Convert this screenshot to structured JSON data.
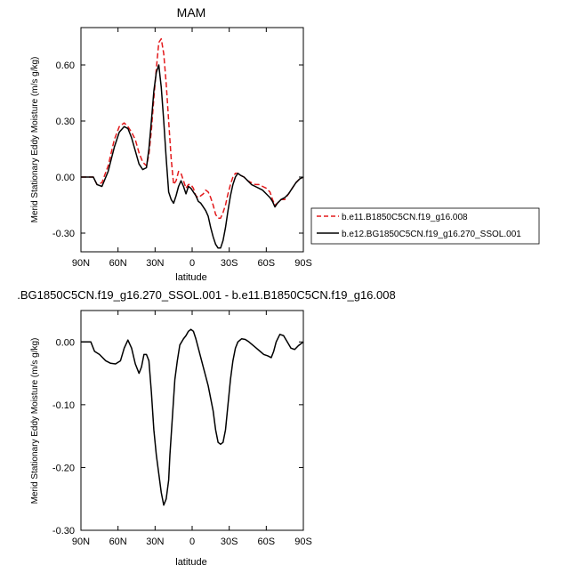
{
  "chart_data": [
    {
      "type": "line",
      "title": "MAM",
      "xlabel": "latitude",
      "ylabel": "Merid Stationary Eddy Moisture (m/s g/kg)",
      "xlim": [
        90,
        -90
      ],
      "ylim": [
        -0.4,
        0.8
      ],
      "x_ticks": [
        90,
        60,
        30,
        0,
        -30,
        -60,
        -90
      ],
      "x_tick_labels": [
        "90N",
        "60N",
        "30N",
        "0",
        "30S",
        "60S",
        "90S"
      ],
      "y_ticks": [
        -0.3,
        0.0,
        0.3,
        0.6
      ],
      "y_tick_labels": [
        "-0.30",
        "0.00",
        "0.30",
        "0.60"
      ],
      "legend_position": "right",
      "series": [
        {
          "name": "b.e11.B1850C5CN.f19_g16.008",
          "color": "#e31a1c",
          "dash": "dashed",
          "x": [
            90,
            85,
            80,
            77,
            73,
            68,
            63,
            59,
            55,
            52,
            49,
            46,
            43,
            40,
            37,
            35,
            33,
            31,
            29,
            27,
            25,
            23,
            21,
            19,
            17,
            15,
            13,
            11,
            9,
            7,
            5,
            3,
            1,
            -1,
            -3,
            -5,
            -7,
            -9,
            -11,
            -13,
            -15,
            -17,
            -19,
            -21,
            -23,
            -25,
            -27,
            -29,
            -31,
            -33,
            -35,
            -37,
            -39,
            -42,
            -45,
            -48,
            -51,
            -54,
            -57,
            -60,
            -63,
            -65,
            -67,
            -69,
            -72,
            -75,
            -78,
            -81,
            -84,
            -87,
            -90
          ],
          "y": [
            0.0,
            0.0,
            0.0,
            -0.04,
            -0.03,
            0.06,
            0.2,
            0.27,
            0.29,
            0.27,
            0.24,
            0.2,
            0.13,
            0.08,
            0.06,
            0.12,
            0.25,
            0.42,
            0.58,
            0.72,
            0.74,
            0.66,
            0.5,
            0.3,
            0.1,
            -0.04,
            -0.02,
            0.03,
            0.02,
            -0.02,
            -0.06,
            -0.04,
            -0.04,
            -0.06,
            -0.1,
            -0.11,
            -0.1,
            -0.09,
            -0.07,
            -0.08,
            -0.11,
            -0.15,
            -0.2,
            -0.22,
            -0.22,
            -0.19,
            -0.15,
            -0.09,
            -0.04,
            0.0,
            0.02,
            0.02,
            0.01,
            0.0,
            -0.02,
            -0.03,
            -0.04,
            -0.04,
            -0.05,
            -0.06,
            -0.08,
            -0.12,
            -0.15,
            -0.14,
            -0.12,
            -0.12,
            -0.09,
            -0.06,
            -0.03,
            -0.01,
            0.0
          ]
        },
        {
          "name": "b.e12.BG1850C5CN.f19_g16.270_SSOL.001",
          "color": "#000000",
          "dash": "solid",
          "x": [
            90,
            85,
            80,
            77,
            73,
            68,
            63,
            59,
            55,
            52,
            49,
            46,
            43,
            40,
            37,
            35,
            33,
            31,
            29,
            27,
            25,
            23,
            21,
            19,
            17,
            15,
            13,
            11,
            9,
            7,
            5,
            3,
            1,
            -1,
            -3,
            -5,
            -7,
            -9,
            -11,
            -13,
            -15,
            -17,
            -19,
            -21,
            -23,
            -25,
            -27,
            -29,
            -31,
            -33,
            -35,
            -37,
            -39,
            -42,
            -45,
            -48,
            -51,
            -54,
            -57,
            -60,
            -63,
            -65,
            -67,
            -69,
            -72,
            -75,
            -78,
            -81,
            -84,
            -87,
            -90
          ],
          "y": [
            0.0,
            0.0,
            0.0,
            -0.04,
            -0.05,
            0.03,
            0.16,
            0.24,
            0.27,
            0.26,
            0.21,
            0.14,
            0.07,
            0.04,
            0.05,
            0.15,
            0.3,
            0.46,
            0.56,
            0.6,
            0.48,
            0.3,
            0.1,
            -0.08,
            -0.12,
            -0.14,
            -0.1,
            -0.05,
            -0.02,
            -0.05,
            -0.09,
            -0.05,
            -0.06,
            -0.08,
            -0.1,
            -0.13,
            -0.14,
            -0.16,
            -0.18,
            -0.21,
            -0.27,
            -0.32,
            -0.36,
            -0.38,
            -0.38,
            -0.34,
            -0.27,
            -0.18,
            -0.1,
            -0.04,
            0.0,
            0.02,
            0.01,
            0.0,
            -0.02,
            -0.04,
            -0.05,
            -0.06,
            -0.07,
            -0.09,
            -0.11,
            -0.13,
            -0.16,
            -0.14,
            -0.12,
            -0.11,
            -0.09,
            -0.06,
            -0.03,
            -0.01,
            0.0
          ]
        }
      ]
    },
    {
      "type": "line",
      "title": ".BG1850C5CN.f19_g16.270_SSOL.001 - b.e11.B1850C5CN.f19_g16.008",
      "xlabel": "latitude",
      "ylabel": "Merid Stationary Eddy Moisture (m/s g/kg)",
      "xlim": [
        90,
        -90
      ],
      "ylim": [
        -0.3,
        0.05
      ],
      "x_ticks": [
        90,
        60,
        30,
        0,
        -30,
        -60,
        -90
      ],
      "x_tick_labels": [
        "90N",
        "60N",
        "30N",
        "0",
        "30S",
        "60S",
        "90S"
      ],
      "y_ticks": [
        -0.3,
        -0.2,
        -0.1,
        0.0
      ],
      "y_tick_labels": [
        "-0.30",
        "-0.20",
        "-0.10",
        "0.00"
      ],
      "series": [
        {
          "color": "#000000",
          "dash": "solid",
          "x": [
            90,
            85,
            82,
            79,
            75,
            70,
            66,
            62,
            58,
            55,
            52,
            49,
            46,
            43,
            41,
            39,
            37,
            35,
            33,
            31,
            29,
            27,
            25,
            23,
            21,
            19,
            18,
            16,
            14,
            12,
            10,
            7,
            5,
            3,
            1,
            -1,
            -3,
            -5,
            -7,
            -9,
            -11,
            -13,
            -15,
            -17,
            -19,
            -21,
            -23,
            -25,
            -27,
            -29,
            -31,
            -33,
            -35,
            -37,
            -40,
            -43,
            -46,
            -49,
            -52,
            -55,
            -58,
            -61,
            -64,
            -66,
            -68,
            -71,
            -74,
            -77,
            -80,
            -83,
            -86,
            -90
          ],
          "y": [
            0.0,
            0.0,
            0.0,
            -0.015,
            -0.02,
            -0.03,
            -0.034,
            -0.035,
            -0.03,
            -0.01,
            0.003,
            -0.01,
            -0.035,
            -0.05,
            -0.04,
            -0.02,
            -0.02,
            -0.03,
            -0.08,
            -0.14,
            -0.18,
            -0.21,
            -0.24,
            -0.26,
            -0.25,
            -0.22,
            -0.18,
            -0.12,
            -0.06,
            -0.03,
            -0.005,
            0.005,
            0.01,
            0.017,
            0.02,
            0.017,
            0.005,
            -0.01,
            -0.025,
            -0.04,
            -0.055,
            -0.07,
            -0.09,
            -0.11,
            -0.14,
            -0.16,
            -0.163,
            -0.16,
            -0.14,
            -0.1,
            -0.06,
            -0.03,
            -0.01,
            0.0,
            0.005,
            0.004,
            0.0,
            -0.005,
            -0.01,
            -0.015,
            -0.02,
            -0.022,
            -0.025,
            -0.015,
            0.0,
            0.012,
            0.01,
            0.0,
            -0.01,
            -0.012,
            -0.006,
            0.0
          ]
        }
      ]
    }
  ]
}
